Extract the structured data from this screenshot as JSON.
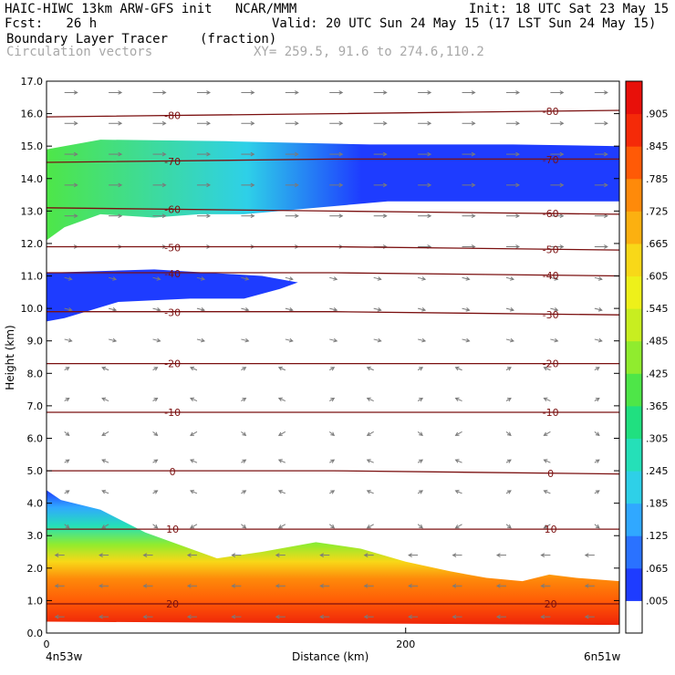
{
  "header": {
    "model": "HAIC-HIWC 13km ARW-GFS init   NCAR/MMM",
    "init": "Init: 18 UTC Sat 23 May 15",
    "fcst_label": "Fcst:   26 h",
    "valid": "Valid: 20 UTC Sun 24 May 15 (17 LST Sun 24 May 15)",
    "field": "Boundary Layer Tracer",
    "units": "(fraction)",
    "vectors": "Circulation vectors",
    "xy": "XY= 259.5, 91.6 to 274.6,110.2"
  },
  "chart_data": {
    "type": "heatmap",
    "ylabel": "Height (km)",
    "xlabel": "Distance (km)",
    "ylim": [
      0,
      17
    ],
    "yticks": [
      "0.0",
      "1.0",
      "2.0",
      "3.0",
      "4.0",
      "5.0",
      "6.0",
      "7.0",
      "8.0",
      "9.0",
      "10.0",
      "11.0",
      "12.0",
      "13.0",
      "14.0",
      "15.0",
      "16.0",
      "17.0"
    ],
    "xlim": [
      0,
      319
    ],
    "xticks": [
      {
        "value": 0,
        "label": "0"
      },
      {
        "value": 200,
        "label": "200"
      }
    ],
    "x_end_labels": {
      "left": "4n53w",
      "right": "6n51w"
    },
    "colorbar": {
      "labels": [
        ".005",
        ".065",
        ".125",
        ".185",
        ".245",
        ".305",
        ".365",
        ".425",
        ".485",
        ".545",
        ".605",
        ".665",
        ".725",
        ".785",
        ".845",
        ".905"
      ],
      "colors": [
        "#ffffff",
        "#1e3cff",
        "#2a72ff",
        "#30a8ff",
        "#2ed0e8",
        "#25e0b8",
        "#20e080",
        "#4ee648",
        "#90ec2e",
        "#c8ee20",
        "#eef01a",
        "#f8d818",
        "#fcb010",
        "#fe8a0a",
        "#ff5a06",
        "#f52a08",
        "#e8100a"
      ]
    },
    "temperature_contours": [
      {
        "label": "-80",
        "height": [
          15.9,
          16.0,
          16.1
        ]
      },
      {
        "label": "-70",
        "height": [
          14.5,
          14.6,
          14.6
        ]
      },
      {
        "label": "-60",
        "height": [
          13.1,
          13.0,
          12.9
        ]
      },
      {
        "label": "-50",
        "height": [
          11.9,
          11.9,
          11.8
        ]
      },
      {
        "label": "-40",
        "height": [
          11.1,
          11.1,
          11.0
        ]
      },
      {
        "label": "-30",
        "height": [
          9.9,
          9.9,
          9.8
        ]
      },
      {
        "label": "-20",
        "height": [
          8.3,
          8.3,
          8.3
        ]
      },
      {
        "label": "-10",
        "height": [
          6.8,
          6.8,
          6.8
        ]
      },
      {
        "label": "0",
        "height": [
          5.0,
          5.0,
          4.9
        ]
      },
      {
        "label": "10",
        "height": [
          3.2,
          3.2,
          3.2
        ]
      },
      {
        "label": "20",
        "height": [
          0.9,
          0.9,
          0.9
        ]
      }
    ],
    "contour_x": [
      0,
      160,
      319
    ]
  }
}
